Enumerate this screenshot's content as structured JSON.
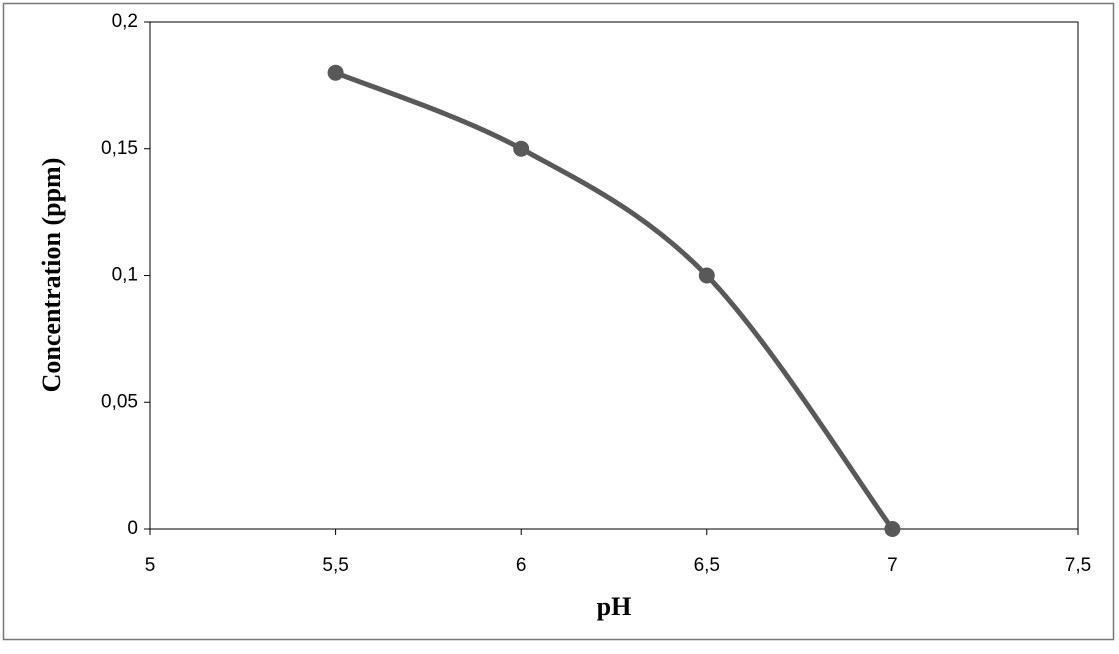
{
  "chart_data": {
    "type": "scatter-smooth",
    "x_label": "pH",
    "y_label": "Concentration (ppm)",
    "x": [
      5.5,
      6,
      6.5,
      7
    ],
    "series": [
      {
        "color": "#595959",
        "values": [
          0.18,
          0.15,
          0.1,
          0
        ]
      }
    ],
    "xlim": [
      5,
      7.5
    ],
    "xticks": [
      5,
      {
        "value": 5.5,
        "label": "5,5"
      },
      6,
      {
        "value": 6.5,
        "label": "6,5"
      },
      7,
      {
        "value": 7.5,
        "label": "7,5"
      }
    ],
    "ylim": [
      0,
      0.2
    ],
    "yticks": [
      0,
      {
        "value": 0.05,
        "label": "0,05"
      },
      {
        "value": 0.1,
        "label": "0,1"
      },
      {
        "value": 0.15,
        "label": "0,15"
      },
      {
        "value": 0.2,
        "label": "0,2"
      }
    ]
  }
}
